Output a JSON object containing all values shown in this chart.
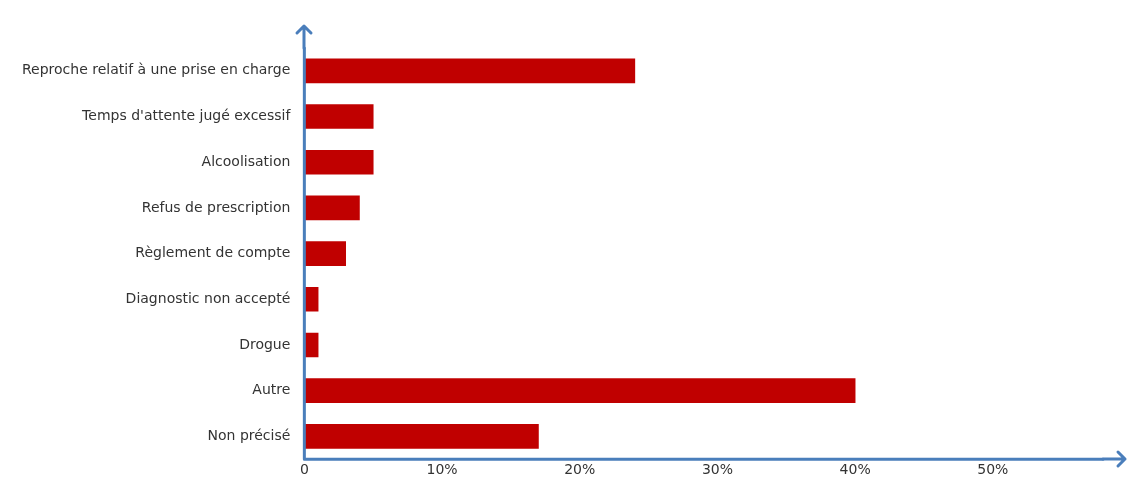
{
  "chart_data": {
    "type": "bar",
    "orientation": "horizontal",
    "categories": [
      "Reproche relatif à une prise en charge",
      "Temps d'attente jugé excessif",
      "Alcoolisation",
      "Refus de prescription",
      "Règlement de compte",
      "Diagnostic non accepté",
      "Drogue",
      "Autre",
      "Non précisé"
    ],
    "values": [
      24,
      5,
      5,
      4,
      3,
      1,
      1,
      40,
      17
    ],
    "color": "#c00000",
    "xlim": [
      0,
      58
    ],
    "xticks": [
      {
        "value": 0,
        "label": "0"
      },
      {
        "value": 10,
        "label": "10%"
      },
      {
        "value": 20,
        "label": "20%"
      },
      {
        "value": 30,
        "label": "30%"
      },
      {
        "value": 40,
        "label": "40%"
      },
      {
        "value": 50,
        "label": "50%"
      }
    ]
  }
}
